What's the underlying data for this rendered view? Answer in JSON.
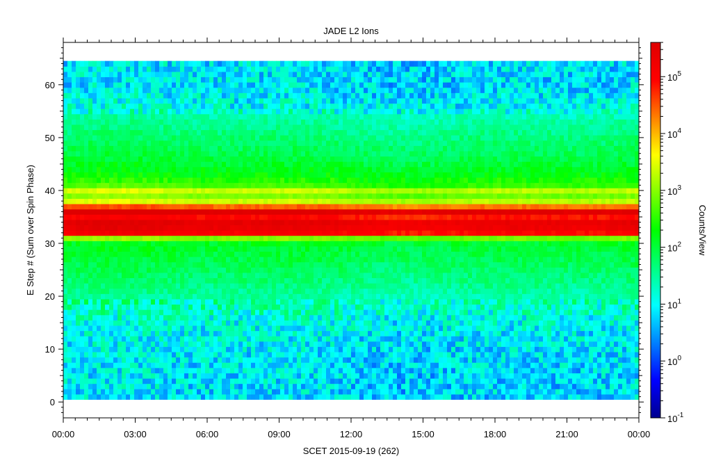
{
  "chart_data": {
    "type": "heatmap",
    "title": "JADE L2 Ions",
    "xlabel": "SCET 2015-09-19 (262)",
    "ylabel": "E Step # (Sum over Spin Phase)",
    "colorbar_label": "Counts/View",
    "x_range": [
      "00:00",
      "24:00"
    ],
    "xticks": [
      "00:00",
      "03:00",
      "06:00",
      "09:00",
      "12:00",
      "15:00",
      "18:00",
      "21:00",
      "00:00"
    ],
    "ylim": [
      -3,
      68
    ],
    "yticks": [
      0,
      10,
      20,
      30,
      40,
      50,
      60
    ],
    "data_y_range": [
      1,
      64
    ],
    "color_scale": "log",
    "clim": [
      0.1,
      400000
    ],
    "colorbar_ticks": [
      {
        "base": "10",
        "exp": "-1",
        "value": 0.1
      },
      {
        "base": "10",
        "exp": "0",
        "value": 1
      },
      {
        "base": "10",
        "exp": "1",
        "value": 10
      },
      {
        "base": "10",
        "exp": "2",
        "value": 100
      },
      {
        "base": "10",
        "exp": "3",
        "value": 1000
      },
      {
        "base": "10",
        "exp": "4",
        "value": 10000
      },
      {
        "base": "10",
        "exp": "5",
        "value": 100000
      }
    ],
    "colormap": [
      "#00008f",
      "#0000ff",
      "#0080ff",
      "#00ffff",
      "#00ff80",
      "#00ff00",
      "#80ff00",
      "#ffff00",
      "#ff8000",
      "#ff0000",
      "#df0000"
    ],
    "energy_profile_log10_counts": [
      {
        "estep": 1,
        "v": 0.8
      },
      {
        "estep": 5,
        "v": 0.85
      },
      {
        "estep": 10,
        "v": 0.9
      },
      {
        "estep": 15,
        "v": 1.05
      },
      {
        "estep": 18,
        "v": 1.3
      },
      {
        "estep": 22,
        "v": 1.6
      },
      {
        "estep": 26,
        "v": 1.85
      },
      {
        "estep": 30,
        "v": 2.1
      },
      {
        "estep": 31,
        "v": 2.9
      },
      {
        "estep": 32,
        "v": 5.0
      },
      {
        "estep": 33,
        "v": 5.3
      },
      {
        "estep": 34,
        "v": 5.4
      },
      {
        "estep": 35,
        "v": 4.9
      },
      {
        "estep": 36,
        "v": 5.6
      },
      {
        "estep": 37,
        "v": 4.4
      },
      {
        "estep": 38,
        "v": 3.3
      },
      {
        "estep": 39,
        "v": 2.9
      },
      {
        "estep": 40,
        "v": 3.3
      },
      {
        "estep": 41,
        "v": 2.6
      },
      {
        "estep": 43,
        "v": 2.25
      },
      {
        "estep": 46,
        "v": 1.95
      },
      {
        "estep": 50,
        "v": 1.7
      },
      {
        "estep": 54,
        "v": 1.4
      },
      {
        "estep": 56,
        "v": 1.0
      },
      {
        "estep": 60,
        "v": 0.85
      },
      {
        "estep": 64,
        "v": 0.85
      }
    ]
  }
}
